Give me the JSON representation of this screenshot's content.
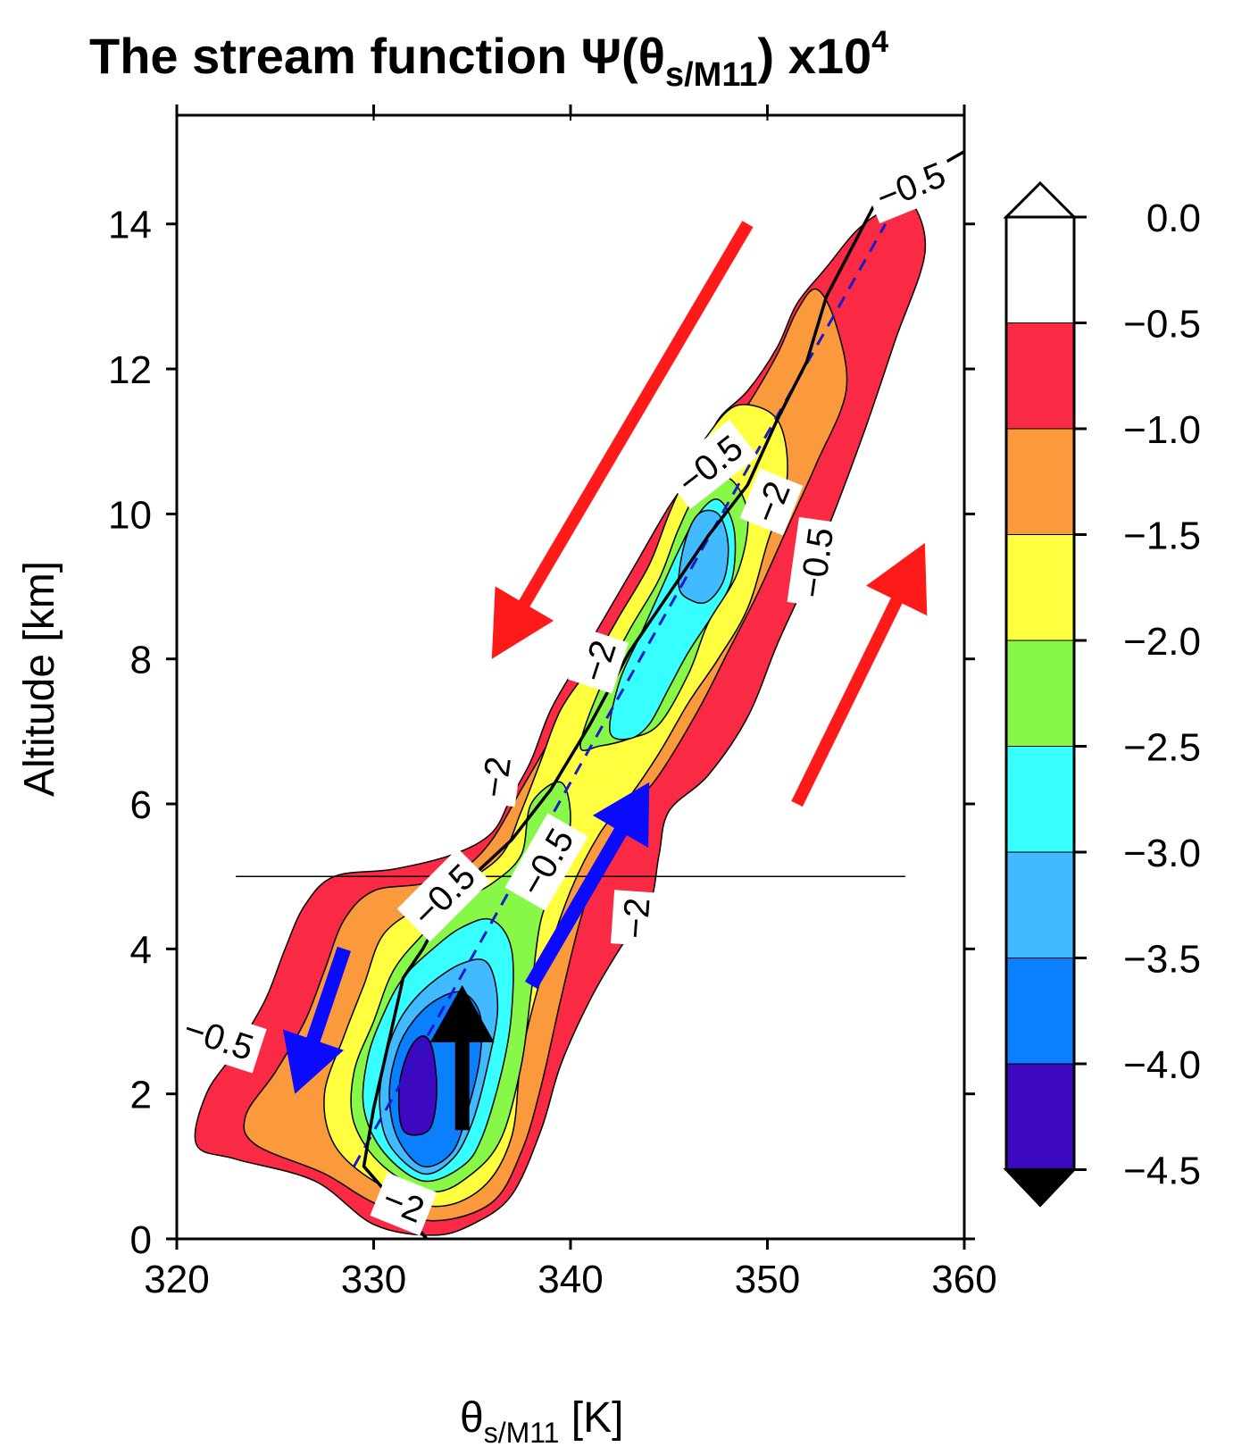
{
  "chart_data": {
    "type": "heatmap",
    "title": "The stream function Ψ(θs/M11) x10⁴",
    "xlabel": "θs/M11 [K]",
    "ylabel": "Altitude [km]",
    "xlim": [
      320,
      360
    ],
    "ylim": [
      0,
      15.5
    ],
    "x_ticks": [
      "320",
      "330",
      "340",
      "350",
      "360"
    ],
    "y_ticks": [
      "0",
      "2",
      "4",
      "6",
      "8",
      "10",
      "12",
      "14"
    ],
    "colorbar": {
      "levels": [
        "0.0",
        "−0.5",
        "−1.0",
        "−1.5",
        "−2.0",
        "−2.5",
        "−3.0",
        "−3.5",
        "−4.0",
        "−4.5"
      ],
      "colors": [
        "#ffffff",
        "#fa2a45",
        "#fa9a3c",
        "#ffff40",
        "#88f848",
        "#38ffff",
        "#42baff",
        "#0a80ff",
        "#3d09c0"
      ],
      "extend": "both",
      "over_color": "#ffffff",
      "under_color": "#000000"
    },
    "contour_labels": [
      "−0.5",
      "−0.5",
      "−2",
      "−0.5",
      "−2",
      "−0.5",
      "−2",
      "−2",
      "−0.5",
      "−0.5",
      "−2"
    ],
    "reference_line_altitude_km": 5,
    "mean_profile_line": {
      "theta": [
        332.7,
        329.5,
        330,
        331,
        331.5,
        332.5,
        333.5,
        335,
        337,
        339,
        341,
        343,
        345,
        347,
        349,
        350.5,
        352,
        353,
        355.5,
        360
      ],
      "altitude": [
        0,
        1,
        1.8,
        3.0,
        3.6,
        4.0,
        4.5,
        5.0,
        5.5,
        6.2,
        7.1,
        8.1,
        8.9,
        9.7,
        10.4,
        11.3,
        12.1,
        13.0,
        14.3,
        15.0
      ]
    },
    "dashed_line": {
      "theta": [
        329,
        356
      ],
      "altitude": [
        1,
        14
      ]
    },
    "field_max": {
      "centers": [
        {
          "theta": 332,
          "altitude": 2.2,
          "value": -4.5
        },
        {
          "theta": 334,
          "altitude": 4.0,
          "value": -3.5
        },
        {
          "theta": 339,
          "altitude": 5.8,
          "value": -2.5
        },
        {
          "theta": 343,
          "altitude": 7.7,
          "value": -3.0
        },
        {
          "theta": 347,
          "altitude": 9.5,
          "value": -3.5
        }
      ]
    },
    "arrows": [
      {
        "color": "red",
        "from": [
          349,
          14
        ],
        "to": [
          336,
          8
        ]
      },
      {
        "color": "red",
        "from": [
          351.5,
          6
        ],
        "to": [
          358,
          9.6
        ]
      },
      {
        "color": "blue",
        "from": [
          338,
          3.5
        ],
        "to": [
          344,
          6.3
        ]
      },
      {
        "color": "blue",
        "from": [
          328.5,
          4
        ],
        "to": [
          326,
          2
        ]
      },
      {
        "color": "black",
        "from": [
          334.5,
          1.5
        ],
        "to": [
          334.5,
          3.5
        ]
      }
    ]
  }
}
